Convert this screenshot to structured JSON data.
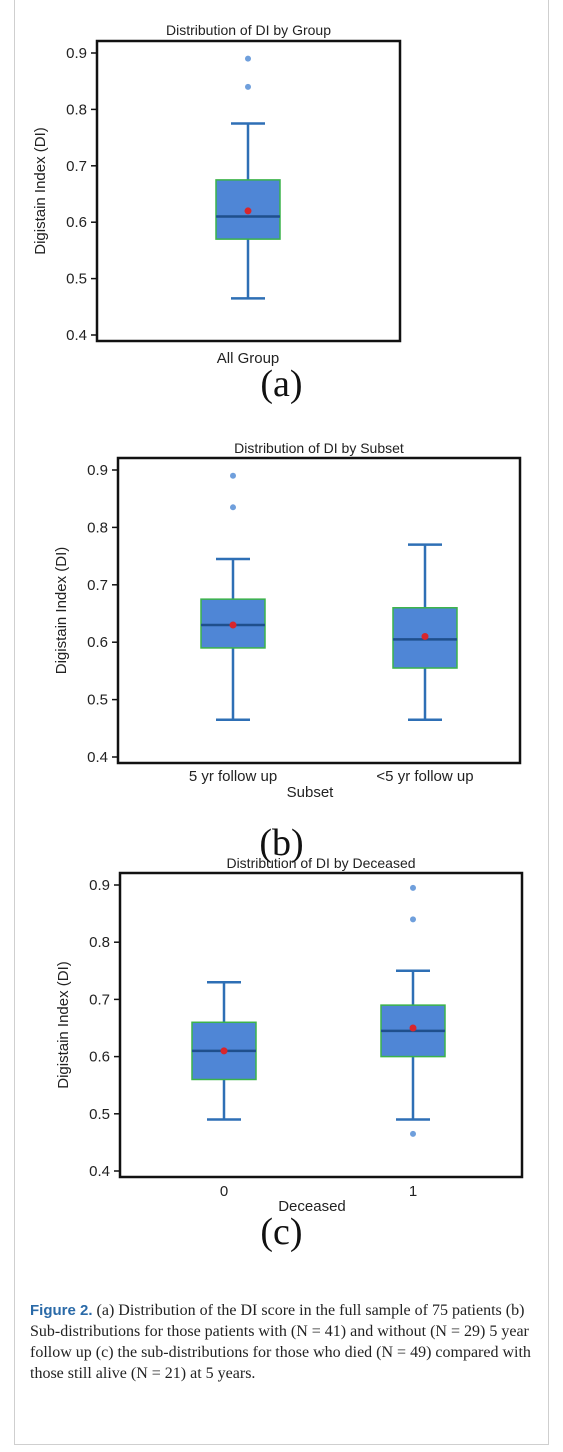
{
  "charts": [
    {
      "panel_label": "(a)",
      "chart_data": {
        "type": "box",
        "title": "Distribution of DI by  Group",
        "xlabel": "",
        "ylabel": "Digistain Index (DI)",
        "ylim": [
          0.4,
          0.9
        ],
        "yticks": [
          "0.4",
          "0.5",
          "0.6",
          "0.7",
          "0.8",
          "0.9"
        ],
        "categories": [
          "All Group"
        ],
        "boxes": [
          {
            "whisker_low": 0.465,
            "q1": 0.57,
            "median": 0.61,
            "q3": 0.675,
            "whisker_high": 0.775,
            "mean": 0.62,
            "outliers": [
              0.84,
              0.89
            ]
          }
        ]
      }
    },
    {
      "panel_label": "(b)",
      "chart_data": {
        "type": "box",
        "title": "Distribution of DI by  Subset",
        "xlabel": "Subset",
        "ylabel": "Digistain Index (DI)",
        "ylim": [
          0.4,
          0.9
        ],
        "yticks": [
          "0.4",
          "0.5",
          "0.6",
          "0.7",
          "0.8",
          "0.9"
        ],
        "categories": [
          "5 yr follow up",
          "<5 yr follow up"
        ],
        "boxes": [
          {
            "whisker_low": 0.465,
            "q1": 0.59,
            "median": 0.63,
            "q3": 0.675,
            "whisker_high": 0.745,
            "mean": 0.63,
            "outliers": [
              0.835,
              0.89
            ]
          },
          {
            "whisker_low": 0.465,
            "q1": 0.555,
            "median": 0.605,
            "q3": 0.66,
            "whisker_high": 0.77,
            "mean": 0.61,
            "outliers": []
          }
        ]
      }
    },
    {
      "panel_label": "(c)",
      "chart_data": {
        "type": "box",
        "title": "Distribution of DI by  Deceased",
        "xlabel": "Deceased",
        "ylabel": "Digistain Index (DI)",
        "ylim": [
          0.4,
          0.9
        ],
        "yticks": [
          "0.4",
          "0.5",
          "0.6",
          "0.7",
          "0.8",
          "0.9"
        ],
        "categories": [
          "0",
          "1"
        ],
        "boxes": [
          {
            "whisker_low": 0.49,
            "q1": 0.56,
            "median": 0.61,
            "q3": 0.66,
            "whisker_high": 0.73,
            "mean": 0.61,
            "outliers": []
          },
          {
            "whisker_low": 0.49,
            "q1": 0.6,
            "median": 0.645,
            "q3": 0.69,
            "whisker_high": 0.75,
            "mean": 0.65,
            "outliers": [
              0.465,
              0.84,
              0.895
            ]
          }
        ]
      }
    }
  ],
  "colors": {
    "box_fill": "#4f86d6",
    "box_edge": "#3cb34a",
    "whisker": "#2e6fb5",
    "median": "#1f4f8c",
    "outlier": "#6f9fdc",
    "mean": "#d8262c"
  },
  "caption": {
    "label": "Figure 2.",
    "text": "(a) Distribution of the DI score in the full sample of 75 patients (b) Sub-distributions for those patients with (N = 41) and without (N = 29) 5 year follow up (c) the sub-distributions for those who died (N = 49) compared with those still alive (N = 21) at 5 years."
  }
}
